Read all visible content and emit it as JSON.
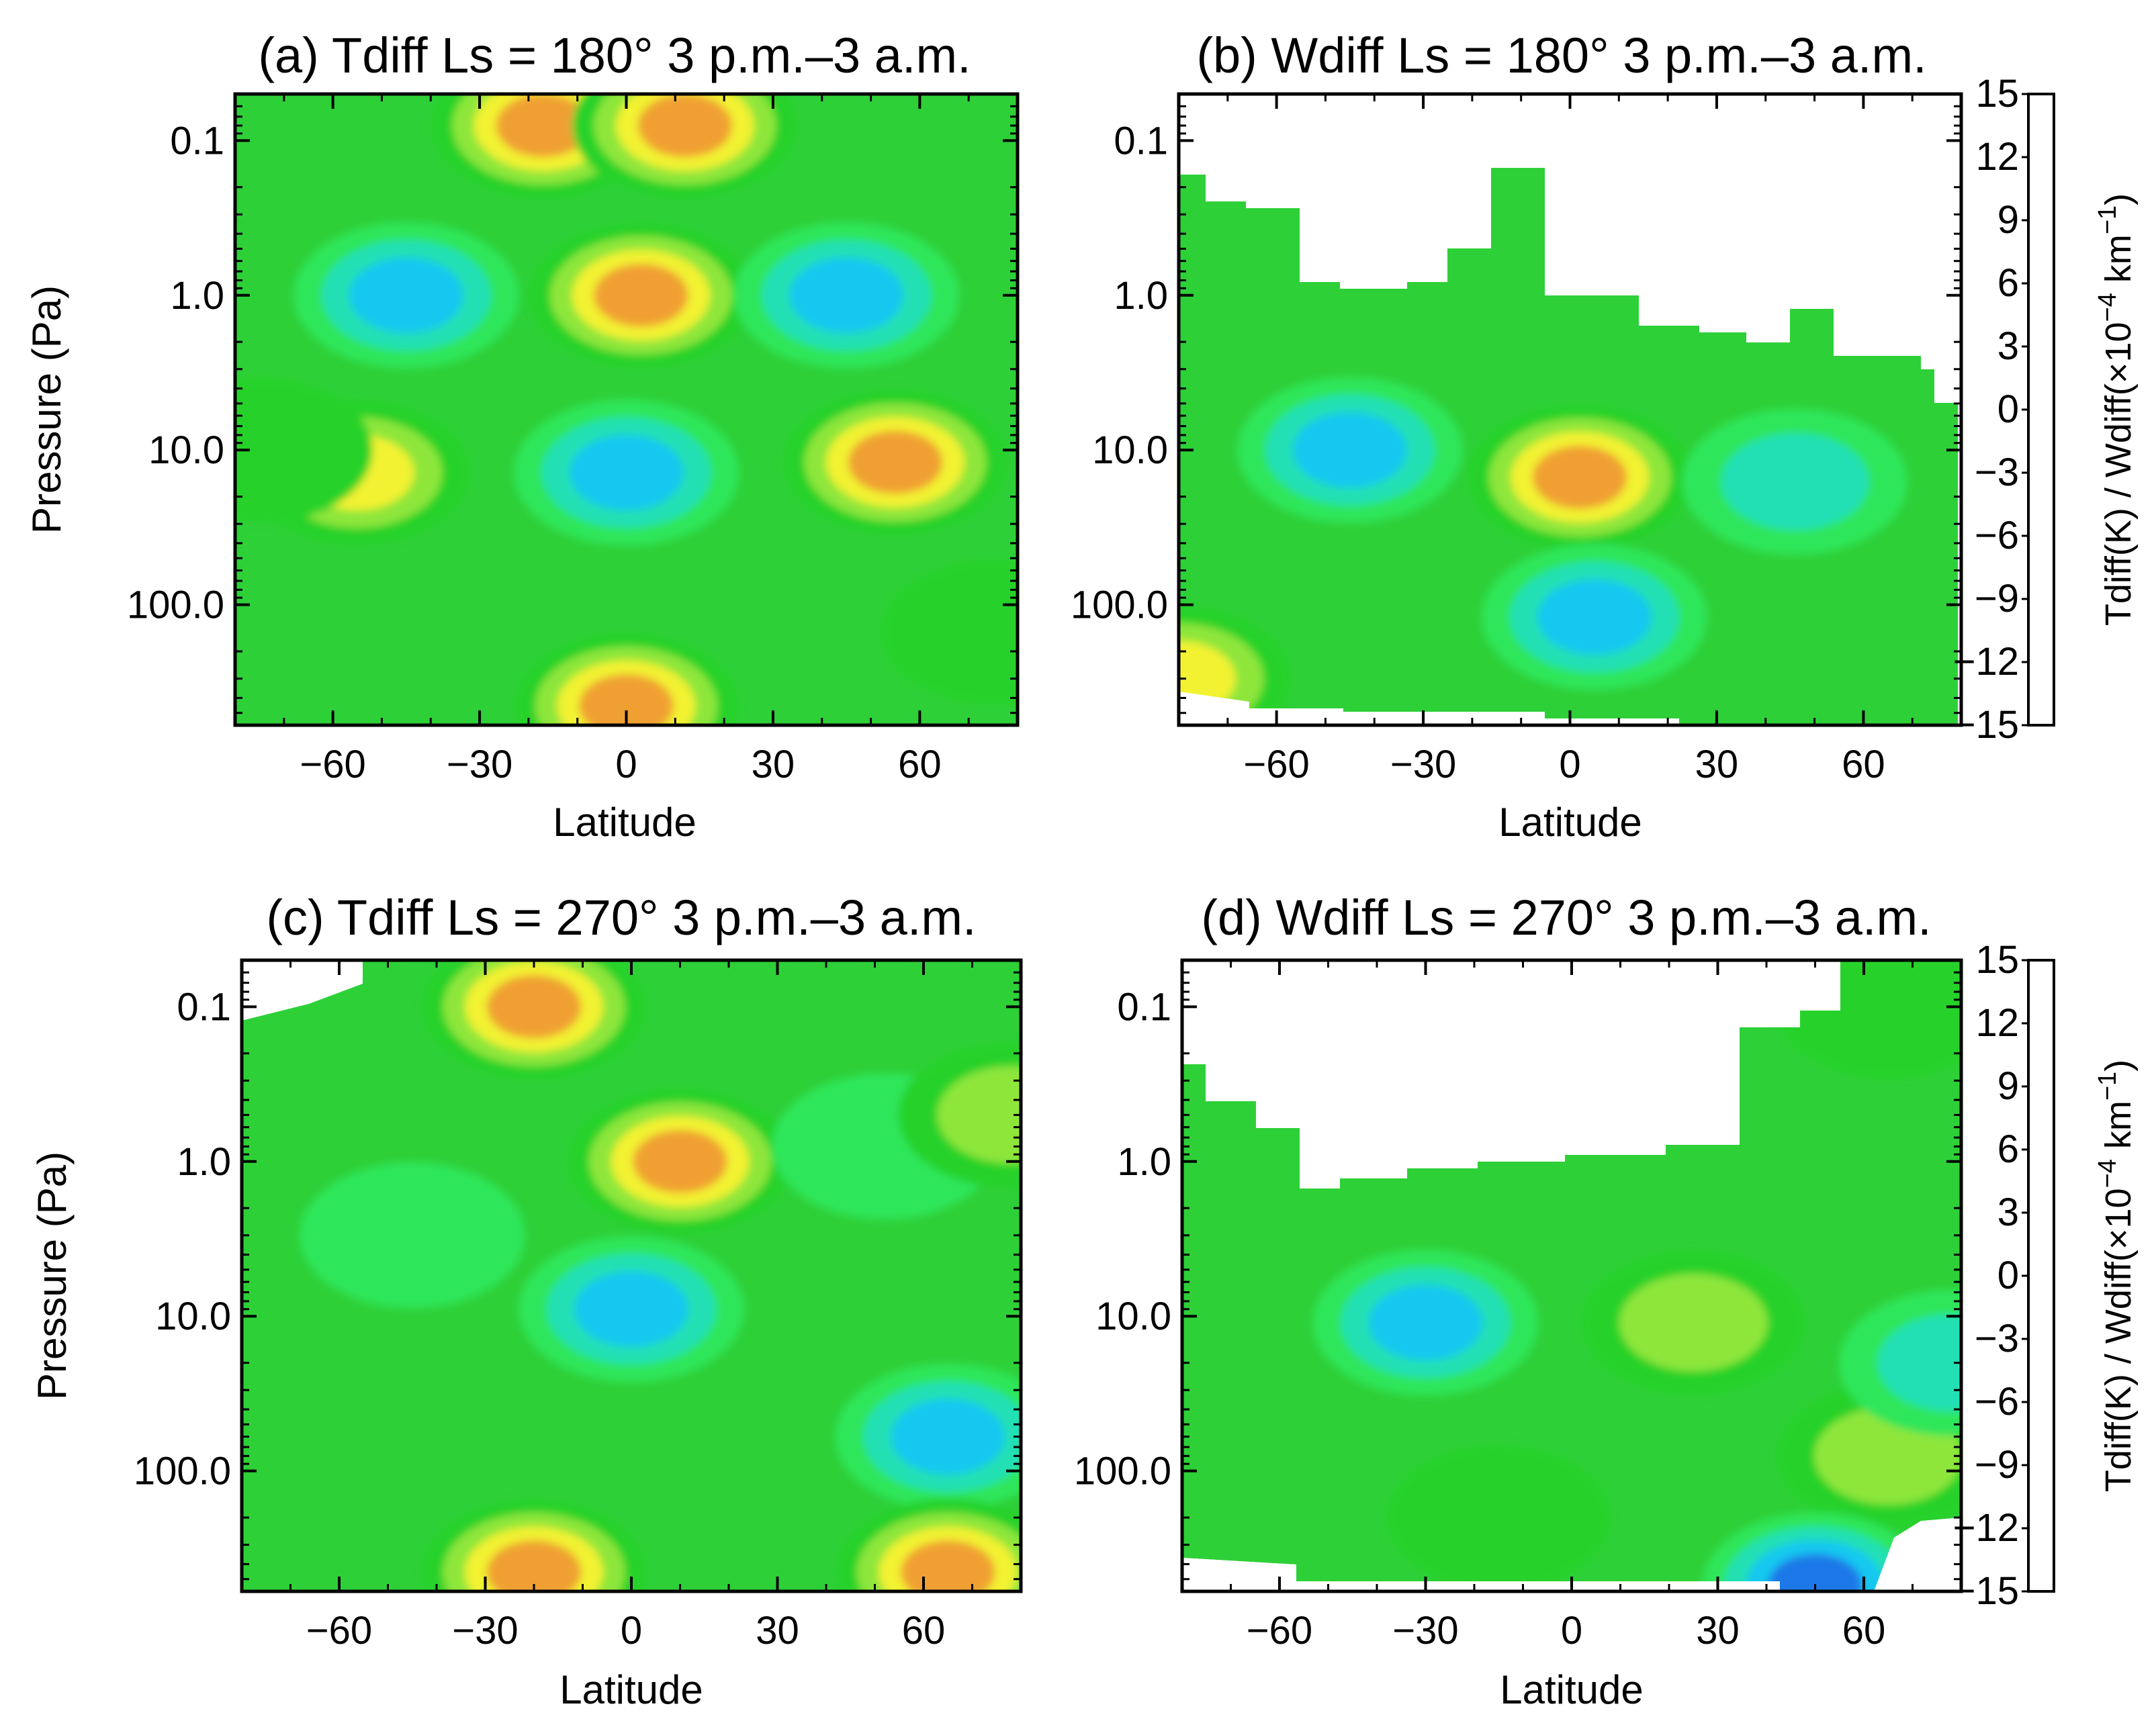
{
  "colorscale": {
    "levels": [
      -15,
      -12,
      -9,
      -6,
      -3,
      0,
      3,
      6,
      9,
      12,
      15
    ],
    "colors": [
      "#1a3cf0",
      "#1f78e8",
      "#19c8f0",
      "#20e0b4",
      "#2ee65a",
      "#26d22a",
      "#8ee63a",
      "#f2f230",
      "#f0a030",
      "#f24a1a"
    ],
    "label_main": "Tdiff(K) / Wdiff(×10",
    "label_exp": "−4",
    "label_unit": " km",
    "label_unit_exp": "−1"
  },
  "chart_data": [
    {
      "id": "a",
      "type": "heatmap",
      "title": "(a) Tdiff Ls = 180° 3 p.m.–3 a.m.",
      "xlabel": "Latitude",
      "ylabel": "Pressure (Pa)",
      "x_ticks": [
        "−60",
        "−30",
        "0",
        "30",
        "60"
      ],
      "y_ticks": [
        "0.1",
        "1.0",
        "10.0",
        "100.0"
      ],
      "xlim": [
        -80,
        80
      ],
      "ylim_pa": [
        0.05,
        600
      ],
      "y_scale": "log",
      "features": [
        {
          "lat": -17,
          "p": 0.08,
          "value": 13
        },
        {
          "lat": 12,
          "p": 0.08,
          "value": 12
        },
        {
          "lat": 3,
          "p": 1.0,
          "value": 14
        },
        {
          "lat": -45,
          "p": 1.0,
          "value": -10
        },
        {
          "lat": 45,
          "p": 1.0,
          "value": -10
        },
        {
          "lat": 0,
          "p": 14,
          "value": -10
        },
        {
          "lat": -55,
          "p": 14,
          "value": 10
        },
        {
          "lat": 55,
          "p": 12,
          "value": 12
        },
        {
          "lat": 0,
          "p": 450,
          "value": 14
        },
        {
          "lat": -75,
          "p": 10,
          "value": 5
        },
        {
          "lat": 75,
          "p": 150,
          "value": 2
        }
      ]
    },
    {
      "id": "b",
      "type": "heatmap",
      "title": "(b) Wdiff Ls = 180° 3 p.m.–3 a.m.",
      "xlabel": "Latitude",
      "ylabel": "",
      "x_ticks": [
        "−60",
        "−30",
        "0",
        "30",
        "60"
      ],
      "y_ticks": [
        "0.1",
        "1.0",
        "10.0",
        "100.0"
      ],
      "xlim": [
        -80,
        80
      ],
      "ylim_pa": [
        0.05,
        600
      ],
      "y_scale": "log",
      "features": [
        {
          "lat": -45,
          "p": 10,
          "value": -11
        },
        {
          "lat": 2,
          "p": 15,
          "value": 14
        },
        {
          "lat": 5,
          "p": 120,
          "value": -9
        },
        {
          "lat": 46,
          "p": 16,
          "value": -7
        },
        {
          "lat": -80,
          "p": 300,
          "value": 9
        }
      ]
    },
    {
      "id": "c",
      "type": "heatmap",
      "title": "(c) Tdiff Ls = 270° 3 p.m.–3 a.m.",
      "xlabel": "Latitude",
      "ylabel": "Pressure (Pa)",
      "x_ticks": [
        "−60",
        "−30",
        "0",
        "30",
        "60"
      ],
      "y_ticks": [
        "0.1",
        "1.0",
        "10.0",
        "100.0"
      ],
      "xlim": [
        -80,
        80
      ],
      "ylim_pa": [
        0.05,
        600
      ],
      "y_scale": "log",
      "features": [
        {
          "lat": -20,
          "p": 0.1,
          "value": 14
        },
        {
          "lat": 10,
          "p": 1.0,
          "value": 14
        },
        {
          "lat": 0,
          "p": 9,
          "value": -9
        },
        {
          "lat": -45,
          "p": 3,
          "value": -4
        },
        {
          "lat": 52,
          "p": 0.8,
          "value": -5
        },
        {
          "lat": 65,
          "p": 60,
          "value": -9
        },
        {
          "lat": -20,
          "p": 450,
          "value": 14
        },
        {
          "lat": 65,
          "p": 450,
          "value": 13
        },
        {
          "lat": 78,
          "p": 0.5,
          "value": 6
        }
      ]
    },
    {
      "id": "d",
      "type": "heatmap",
      "title": "(d) Wdiff Ls = 270° 3 p.m.–3 a.m.",
      "xlabel": "Latitude",
      "ylabel": "",
      "x_ticks": [
        "−60",
        "−30",
        "0",
        "30",
        "60"
      ],
      "y_ticks": [
        "0.1",
        "1.0",
        "10.0",
        "100.0"
      ],
      "xlim": [
        -80,
        80
      ],
      "ylim_pa": [
        0.05,
        600
      ],
      "y_scale": "log",
      "features": [
        {
          "lat": -30,
          "p": 11,
          "value": -9
        },
        {
          "lat": 25,
          "p": 11,
          "value": 7
        },
        {
          "lat": -15,
          "p": 200,
          "value": 5
        },
        {
          "lat": 65,
          "p": 80,
          "value": 6
        },
        {
          "lat": 78,
          "p": 20,
          "value": -8
        },
        {
          "lat": 50,
          "p": 550,
          "value": -13
        },
        {
          "lat": 65,
          "p": 0.1,
          "value": 4
        }
      ]
    }
  ]
}
